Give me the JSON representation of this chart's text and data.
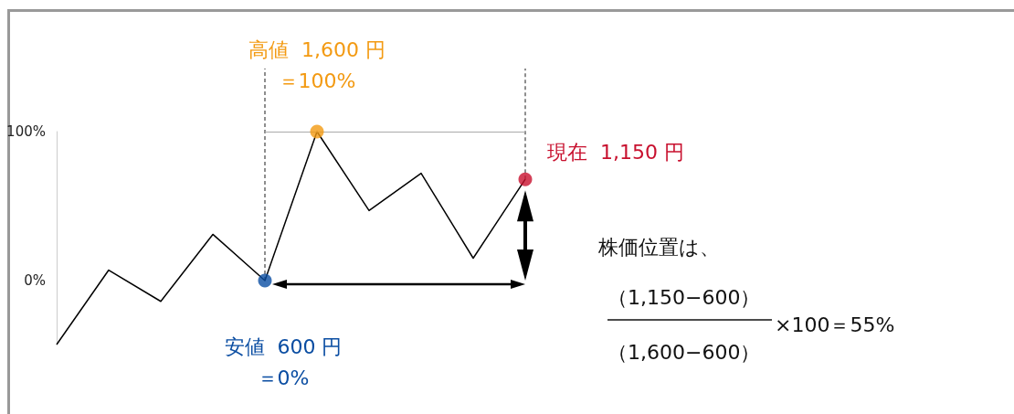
{
  "chart_data": {
    "type": "line",
    "categories": [
      null,
      null,
      null,
      null,
      null,
      null,
      null,
      null,
      null,
      null
    ],
    "ylim": [
      -43,
      100
    ],
    "yticks": [
      {
        "value": 0,
        "label": "0%"
      },
      {
        "value": 100,
        "label": "100%"
      }
    ],
    "tick_labels": "y",
    "grid": false,
    "series": [
      {
        "color": "#000000",
        "marker": "none",
        "values": [
          -43,
          7,
          -14,
          31,
          0,
          100,
          47,
          72,
          15,
          68
        ]
      },
      {
        "type": "scatter",
        "marker": "circle",
        "values": [
          null,
          null,
          null,
          null,
          0,
          100,
          null,
          null,
          null,
          68
        ],
        "colors": [
          null,
          null,
          null,
          null,
          "#0a4da2",
          "#f39a12",
          null,
          null,
          null,
          "#c8102e"
        ]
      }
    ],
    "ref_lines": [
      {
        "axis": "y",
        "value": 100,
        "line_style": "solid",
        "color": "#aaaaaa"
      }
    ],
    "annotations": [
      "高値  1,600 円",
      "＝100%",
      "現在  1,150 円",
      "安値  600 円",
      "＝0%",
      "株価位置は、",
      "（1,150−600）",
      "（1,600−600）",
      "×100＝55%"
    ]
  }
}
